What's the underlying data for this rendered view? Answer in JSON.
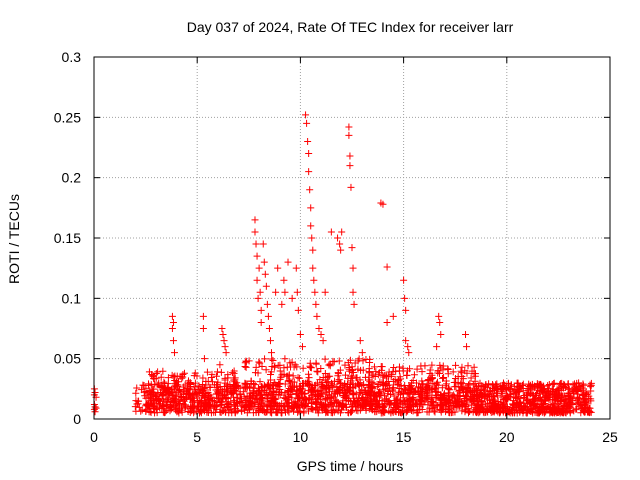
{
  "chart_data": {
    "type": "scatter",
    "title": "Day 037 of 2024, Rate Of TEC Index for receiver larr",
    "xlabel": "GPS time / hours",
    "ylabel": "ROTI / TECUs",
    "xlim": [
      0,
      25
    ],
    "ylim": [
      0,
      0.3
    ],
    "xticks": [
      "0",
      "5",
      "10",
      "15",
      "20",
      "25"
    ],
    "yticks": [
      "0",
      "0.05",
      "0.1",
      "0.15",
      "0.2",
      "0.25",
      "0.3"
    ],
    "grid": true,
    "marker": "+",
    "color": "#ff0000",
    "series": [
      {
        "x": [
          0.02,
          0.02,
          0.02,
          0.02,
          0.05,
          0.05,
          0.05,
          0.1,
          0.1,
          3.8,
          3.8,
          3.85,
          3.85,
          3.9,
          5.3,
          5.3,
          5.35,
          6.1,
          6.2,
          6.25,
          6.3,
          6.35,
          6.4,
          7.8,
          7.8,
          7.85,
          7.9,
          7.9,
          7.95,
          8.0,
          8.05,
          8.1,
          8.1,
          8.2,
          8.25,
          8.3,
          8.35,
          8.4,
          8.45,
          8.5,
          8.55,
          8.6,
          8.8,
          8.9,
          9.1,
          9.2,
          9.25,
          9.4,
          9.6,
          9.8,
          9.85,
          9.9,
          10.0,
          10.1,
          10.25,
          10.3,
          10.35,
          10.4,
          10.4,
          10.45,
          10.5,
          10.5,
          10.55,
          10.6,
          10.6,
          10.65,
          10.7,
          10.75,
          10.8,
          10.9,
          11.0,
          11.1,
          11.2,
          11.5,
          11.8,
          11.9,
          11.95,
          12.0,
          12.35,
          12.35,
          12.4,
          12.4,
          12.45,
          12.5,
          12.55,
          12.55,
          12.6,
          12.9,
          13.0,
          13.9,
          14.0,
          14.2,
          14.2,
          14.5,
          15.0,
          15.05,
          15.1,
          15.1,
          15.2,
          15.25,
          16.6,
          16.7,
          16.75,
          16.8,
          18.0,
          18.05
        ],
        "y": [
          0.025,
          0.02,
          0.012,
          0.008,
          0.022,
          0.01,
          0.006,
          0.018,
          0.009,
          0.085,
          0.075,
          0.08,
          0.065,
          0.055,
          0.085,
          0.075,
          0.05,
          0.045,
          0.075,
          0.07,
          0.065,
          0.06,
          0.055,
          0.165,
          0.155,
          0.145,
          0.135,
          0.115,
          0.1,
          0.125,
          0.105,
          0.09,
          0.08,
          0.145,
          0.13,
          0.12,
          0.11,
          0.095,
          0.085,
          0.075,
          0.065,
          0.055,
          0.105,
          0.125,
          0.095,
          0.115,
          0.105,
          0.13,
          0.1,
          0.125,
          0.105,
          0.09,
          0.07,
          0.06,
          0.252,
          0.245,
          0.23,
          0.22,
          0.205,
          0.19,
          0.175,
          0.16,
          0.15,
          0.14,
          0.125,
          0.115,
          0.105,
          0.095,
          0.085,
          0.075,
          0.07,
          0.065,
          0.105,
          0.155,
          0.15,
          0.145,
          0.14,
          0.155,
          0.242,
          0.235,
          0.218,
          0.21,
          0.192,
          0.142,
          0.125,
          0.105,
          0.095,
          0.065,
          0.055,
          0.179,
          0.178,
          0.126,
          0.08,
          0.085,
          0.115,
          0.1,
          0.09,
          0.065,
          0.06,
          0.055,
          0.06,
          0.085,
          0.08,
          0.07,
          0.07,
          0.06
        ]
      }
    ],
    "dense_bands": [
      {
        "x": [
          2.0,
          24.1
        ],
        "y": [
          0.005,
          0.03
        ]
      },
      {
        "x": [
          2.4,
          7.0
        ],
        "y": [
          0.01,
          0.04
        ]
      },
      {
        "x": [
          7.3,
          13.5
        ],
        "y": [
          0.01,
          0.05
        ]
      },
      {
        "x": [
          13.5,
          18.5
        ],
        "y": [
          0.01,
          0.045
        ]
      },
      {
        "x": [
          18.5,
          24.1
        ],
        "y": [
          0.005,
          0.03
        ]
      }
    ]
  }
}
